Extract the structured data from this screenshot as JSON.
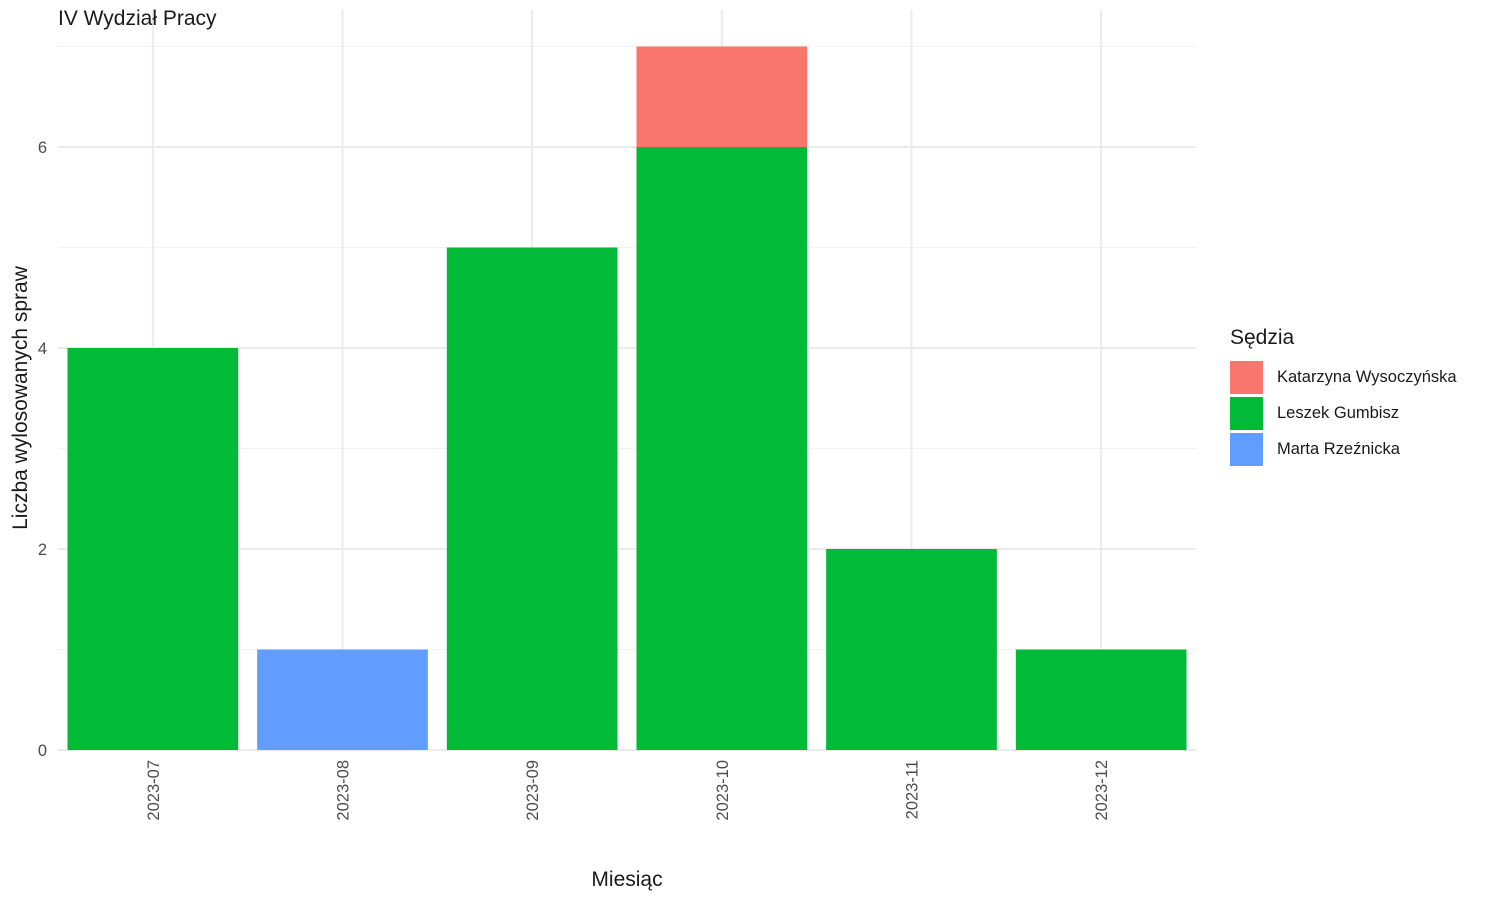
{
  "chart_data": {
    "type": "bar",
    "stacked": true,
    "title": "IV Wydział Pracy",
    "xlabel": "Miesiąc",
    "ylabel": "Liczba wylosowanych spraw",
    "categories": [
      "2023-07",
      "2023-08",
      "2023-09",
      "2023-10",
      "2023-11",
      "2023-12"
    ],
    "ylim": [
      0,
      7
    ],
    "yticks": [
      0,
      2,
      4,
      6
    ],
    "grid": true,
    "legend": {
      "title": "Sędzia",
      "placement": "right"
    },
    "series": [
      {
        "name": "Leszek Gumbisz",
        "color": "#00BA38",
        "values": [
          4,
          0,
          5,
          6,
          2,
          1
        ]
      },
      {
        "name": "Marta Rzeźnicka",
        "color": "#619CFF",
        "values": [
          0,
          1,
          0,
          0,
          0,
          0
        ]
      },
      {
        "name": "Katarzyna Wysoczyńska",
        "color": "#F8766D",
        "values": [
          0,
          0,
          0,
          1,
          0,
          0
        ]
      }
    ],
    "legend_order": [
      "Katarzyna Wysoczyńska",
      "Leszek Gumbisz",
      "Marta Rzeźnicka"
    ]
  }
}
